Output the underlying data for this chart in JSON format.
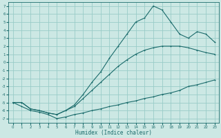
{
  "xlabel": "Humidex (Indice chaleur)",
  "bg_color": "#cce8e4",
  "grid_color": "#99ccc8",
  "line_color": "#1a6b6b",
  "xlim": [
    -0.5,
    23.5
  ],
  "ylim": [
    -7.5,
    7.5
  ],
  "xticks": [
    0,
    1,
    2,
    3,
    4,
    5,
    6,
    7,
    8,
    9,
    10,
    11,
    12,
    13,
    14,
    15,
    16,
    17,
    18,
    19,
    20,
    21,
    22,
    23
  ],
  "yticks": [
    -7,
    -6,
    -5,
    -4,
    -3,
    -2,
    -1,
    0,
    1,
    2,
    3,
    4,
    5,
    6,
    7
  ],
  "line_flat_x": [
    0,
    1,
    2,
    3,
    4,
    5,
    6,
    7,
    8,
    9,
    10,
    11,
    12,
    13,
    14,
    15,
    16,
    17,
    18,
    19,
    20,
    21,
    22,
    23
  ],
  "line_flat_y": [
    -5,
    -5.5,
    -6,
    -6.2,
    -6.5,
    -7.0,
    -6.8,
    -6.5,
    -6.3,
    -6.0,
    -5.8,
    -5.5,
    -5.3,
    -5.0,
    -4.8,
    -4.5,
    -4.3,
    -4.0,
    -3.8,
    -3.5,
    -3.0,
    -2.8,
    -2.5,
    -2.2
  ],
  "line_diag_x": [
    0,
    1,
    2,
    3,
    4,
    5,
    6,
    7,
    8,
    9,
    10,
    11,
    12,
    13,
    14,
    15,
    16,
    17,
    18,
    19,
    20,
    21,
    22,
    23
  ],
  "line_diag_y": [
    -5,
    -5.0,
    -5.8,
    -6.0,
    -6.3,
    -6.5,
    -6.0,
    -5.5,
    -4.5,
    -3.5,
    -2.5,
    -1.5,
    -0.5,
    0.3,
    1.0,
    1.5,
    1.8,
    2.0,
    2.0,
    2.0,
    1.8,
    1.5,
    1.2,
    1.0
  ],
  "line_peak_x": [
    0,
    1,
    2,
    3,
    4,
    5,
    6,
    7,
    8,
    9,
    10,
    11,
    12,
    13,
    14,
    15,
    16,
    17,
    18,
    19,
    20,
    21,
    22,
    23
  ],
  "line_peak_y": [
    -5,
    -5.0,
    -5.8,
    -6.0,
    -6.3,
    -6.5,
    -6.0,
    -5.3,
    -4.0,
    -2.5,
    -1.2,
    0.5,
    2.0,
    3.5,
    5.0,
    5.5,
    7.0,
    6.5,
    5.0,
    3.5,
    3.0,
    3.8,
    3.5,
    2.5
  ]
}
